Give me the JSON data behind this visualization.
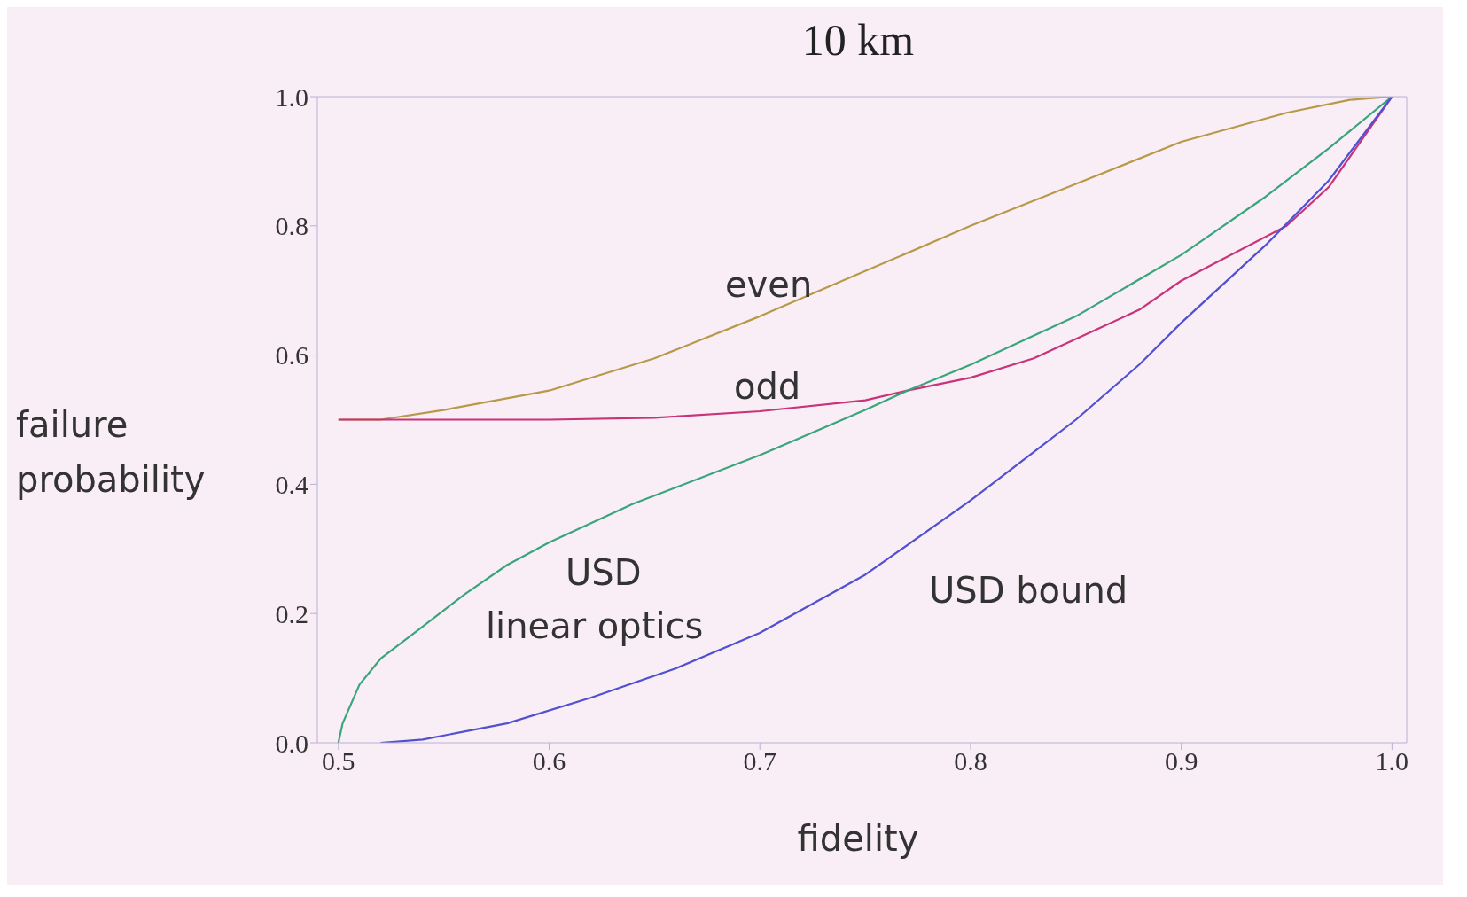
{
  "chart_data": {
    "type": "line",
    "title": "10 km",
    "xlabel": "fidelity",
    "ylabel": "failure probability",
    "xlim": [
      0.49,
      1.007
    ],
    "ylim": [
      0,
      1
    ],
    "xticks": [
      0.5,
      0.6,
      0.7,
      0.8,
      0.9,
      {
        "value": 1,
        "label": "1.0"
      }
    ],
    "yticks": [
      {
        "value": 0,
        "label": "0.0"
      },
      0.2,
      0.4,
      0.6,
      0.8,
      {
        "value": 1,
        "label": "1.0"
      }
    ],
    "grid": false,
    "marker": "none",
    "line_style": "solid",
    "series": [
      {
        "color": "#b8994a",
        "x": [
          0.5,
          0.52,
          0.55,
          0.6,
          0.65,
          0.7,
          0.75,
          0.8,
          0.85,
          0.9,
          0.95,
          0.98,
          1.0
        ],
        "values": [
          0.5,
          0.5,
          0.515,
          0.545,
          0.595,
          0.66,
          0.73,
          0.8,
          0.865,
          0.93,
          0.975,
          0.995,
          1.0
        ]
      },
      {
        "color": "#c8337a",
        "x": [
          0.5,
          0.6,
          0.65,
          0.7,
          0.75,
          0.77,
          0.8,
          0.83,
          0.86,
          0.88,
          0.9,
          0.95,
          0.97,
          1.0
        ],
        "values": [
          0.5,
          0.5,
          0.503,
          0.513,
          0.53,
          0.545,
          0.565,
          0.595,
          0.64,
          0.67,
          0.715,
          0.8,
          0.86,
          1.0
        ]
      },
      {
        "color": "#3aa57a",
        "x": [
          0.5,
          0.502,
          0.51,
          0.52,
          0.54,
          0.56,
          0.58,
          0.6,
          0.64,
          0.7,
          0.75,
          0.77,
          0.8,
          0.85,
          0.9,
          0.94,
          0.97,
          1.0
        ],
        "values": [
          0,
          0.03,
          0.09,
          0.13,
          0.18,
          0.23,
          0.275,
          0.31,
          0.37,
          0.445,
          0.515,
          0.545,
          0.585,
          0.66,
          0.755,
          0.845,
          0.92,
          1.0
        ]
      },
      {
        "color": "#5050d0",
        "x": [
          0.52,
          0.54,
          0.58,
          0.62,
          0.66,
          0.7,
          0.75,
          0.8,
          0.85,
          0.88,
          0.9,
          0.94,
          0.97,
          1.0
        ],
        "values": [
          0,
          0.005,
          0.03,
          0.07,
          0.115,
          0.17,
          0.26,
          0.375,
          0.5,
          0.585,
          0.65,
          0.77,
          0.87,
          1.0
        ]
      }
    ],
    "annotations": [
      "even",
      "odd",
      "USD",
      "linear optics",
      "USD bound"
    ]
  }
}
